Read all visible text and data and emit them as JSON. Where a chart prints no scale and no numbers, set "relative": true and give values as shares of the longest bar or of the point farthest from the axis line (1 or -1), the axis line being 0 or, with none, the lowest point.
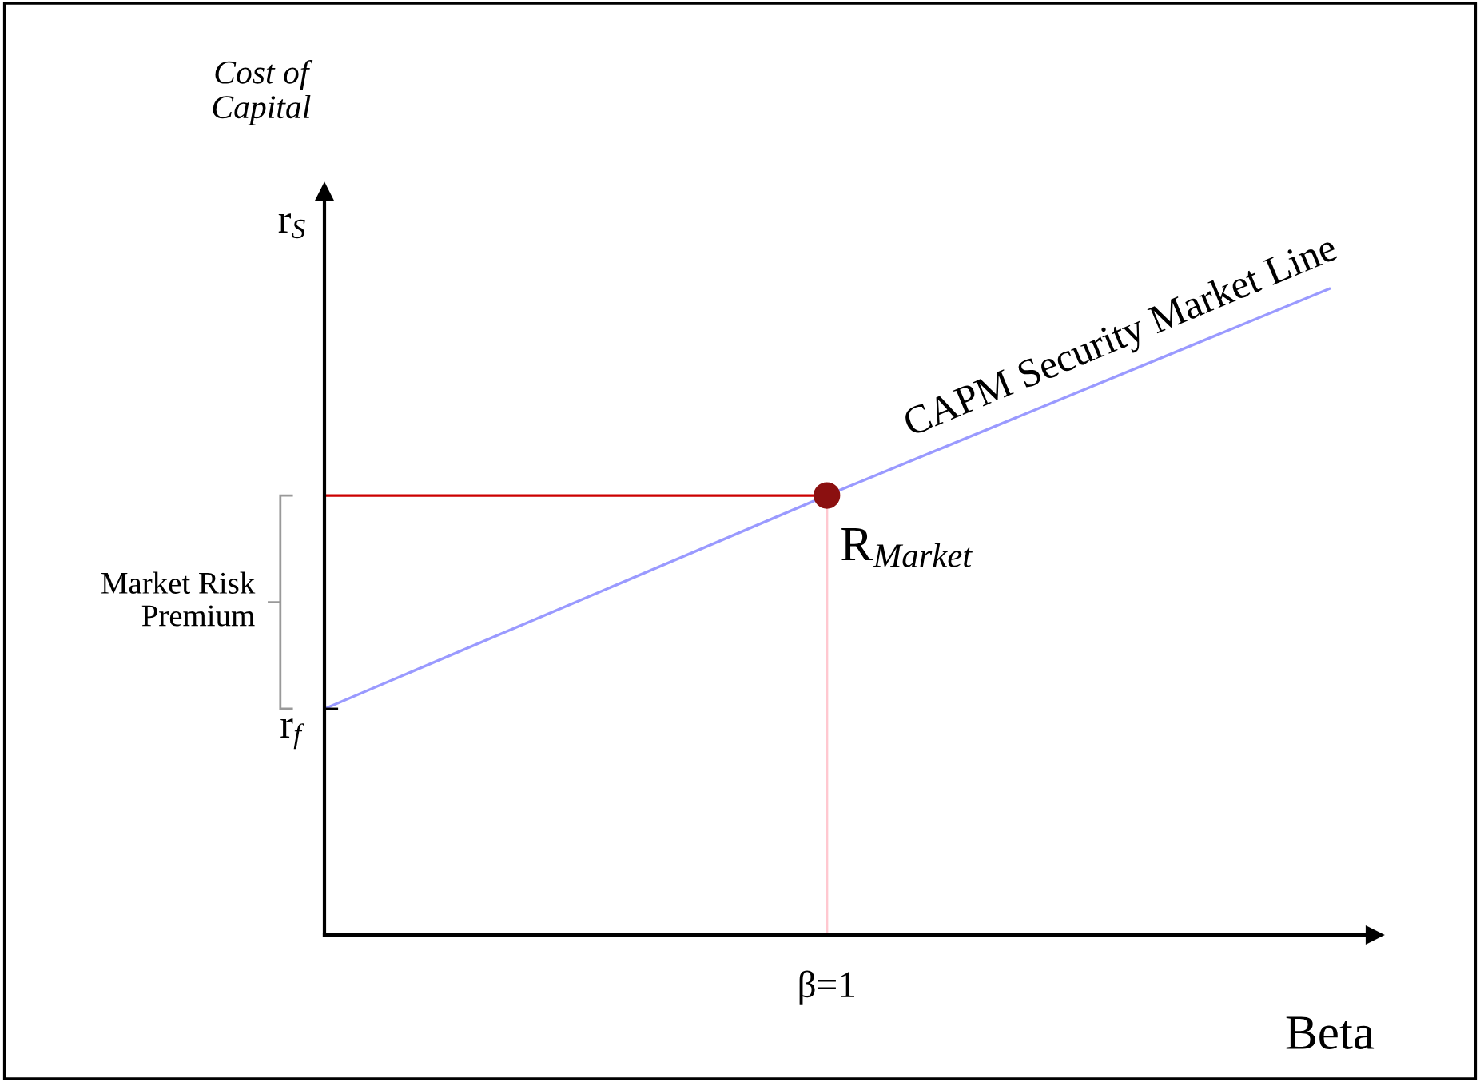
{
  "chart_data": {
    "type": "line",
    "relative": true,
    "xlabel": "Beta",
    "ylabel": "Cost of\nCapital",
    "categories": [
      null,
      null,
      null
    ],
    "series": [
      {
        "name": "CAPM Security Market Line",
        "color": "#9a9aff",
        "values": [
          0.35,
          0.68,
          1.0
        ]
      }
    ],
    "ref_lines": [
      {
        "axis": "y",
        "value": 0.68,
        "color": "#cc0000"
      }
    ],
    "annotations": [
      "R$_{Market}$",
      "r$_{f}$",
      "r$_{S}$",
      "β=1",
      "Market Risk Premium"
    ],
    "legend": false,
    "grid": false
  }
}
